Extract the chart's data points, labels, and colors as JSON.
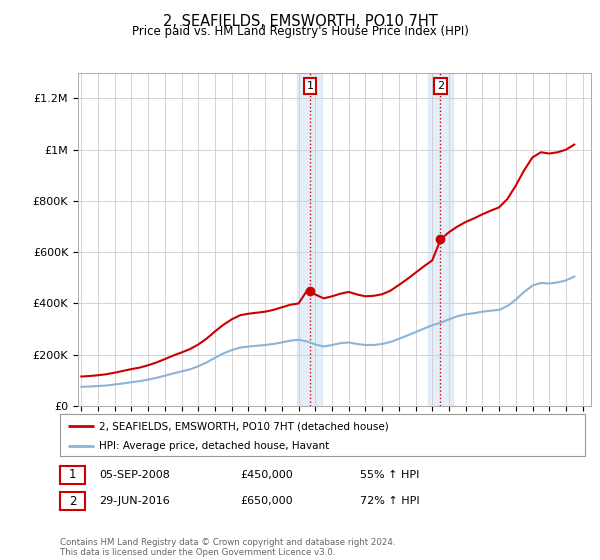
{
  "title": "2, SEAFIELDS, EMSWORTH, PO10 7HT",
  "subtitle": "Price paid vs. HM Land Registry's House Price Index (HPI)",
  "background_color": "#ffffff",
  "plot_bg_color": "#ffffff",
  "grid_color": "#cccccc",
  "ylim": [
    0,
    1300000
  ],
  "yticks": [
    0,
    200000,
    400000,
    600000,
    800000,
    1000000,
    1200000
  ],
  "ytick_labels": [
    "£0",
    "£200K",
    "£400K",
    "£600K",
    "£800K",
    "£1M",
    "£1.2M"
  ],
  "xlim_start": 1994.8,
  "xlim_end": 2025.5,
  "hpi_line_color": "#8ab4d8",
  "price_line_color": "#cc0000",
  "shade_color": "#cce0f5",
  "shade_alpha": 0.55,
  "vline_color": "#cc0000",
  "vline_style": ":",
  "point1_x": 2008.68,
  "point1_y": 450000,
  "point1_label": "1",
  "point1_date": "05-SEP-2008",
  "point1_price": "£450,000",
  "point1_hpi": "55% ↑ HPI",
  "point2_x": 2016.49,
  "point2_y": 650000,
  "point2_label": "2",
  "point2_date": "29-JUN-2016",
  "point2_price": "£650,000",
  "point2_hpi": "72% ↑ HPI",
  "legend_line1": "2, SEAFIELDS, EMSWORTH, PO10 7HT (detached house)",
  "legend_line2": "HPI: Average price, detached house, Havant",
  "footer": "Contains HM Land Registry data © Crown copyright and database right 2024.\nThis data is licensed under the Open Government Licence v3.0.",
  "hpi_data_x": [
    1995,
    1995.5,
    1996,
    1996.5,
    1997,
    1997.5,
    1998,
    1998.5,
    1999,
    1999.5,
    2000,
    2000.5,
    2001,
    2001.5,
    2002,
    2002.5,
    2003,
    2003.5,
    2004,
    2004.5,
    2005,
    2005.5,
    2006,
    2006.5,
    2007,
    2007.5,
    2008,
    2008.5,
    2009,
    2009.5,
    2010,
    2010.5,
    2011,
    2011.5,
    2012,
    2012.5,
    2013,
    2013.5,
    2014,
    2014.5,
    2015,
    2015.5,
    2016,
    2016.5,
    2017,
    2017.5,
    2018,
    2018.5,
    2019,
    2019.5,
    2020,
    2020.5,
    2021,
    2021.5,
    2022,
    2022.5,
    2023,
    2023.5,
    2024,
    2024.5
  ],
  "hpi_data_y": [
    75000,
    76000,
    78000,
    80000,
    84000,
    88000,
    93000,
    97000,
    103000,
    110000,
    118000,
    127000,
    135000,
    143000,
    155000,
    170000,
    188000,
    205000,
    218000,
    228000,
    232000,
    235000,
    238000,
    242000,
    248000,
    255000,
    258000,
    252000,
    240000,
    232000,
    238000,
    245000,
    248000,
    242000,
    238000,
    238000,
    242000,
    250000,
    262000,
    275000,
    288000,
    302000,
    315000,
    325000,
    338000,
    350000,
    358000,
    362000,
    368000,
    372000,
    375000,
    390000,
    415000,
    445000,
    470000,
    480000,
    478000,
    482000,
    490000,
    505000
  ],
  "price_data_x": [
    1995,
    1995.5,
    1996,
    1996.5,
    1997,
    1997.5,
    1998,
    1998.5,
    1999,
    1999.5,
    2000,
    2000.5,
    2001,
    2001.5,
    2002,
    2002.5,
    2003,
    2003.5,
    2004,
    2004.5,
    2005,
    2005.5,
    2006,
    2006.5,
    2007,
    2007.5,
    2008,
    2008.5,
    2009,
    2009.5,
    2010,
    2010.5,
    2011,
    2011.5,
    2012,
    2012.5,
    2013,
    2013.5,
    2014,
    2014.5,
    2015,
    2015.5,
    2016,
    2016.5,
    2017,
    2017.5,
    2018,
    2018.5,
    2019,
    2019.5,
    2020,
    2020.5,
    2021,
    2021.5,
    2022,
    2022.5,
    2023,
    2023.5,
    2024,
    2024.5
  ],
  "price_data_y": [
    115000,
    117000,
    120000,
    124000,
    130000,
    137000,
    144000,
    150000,
    159000,
    170000,
    183000,
    197000,
    209000,
    222000,
    240000,
    263000,
    291000,
    317000,
    338000,
    354000,
    360000,
    364000,
    368000,
    375000,
    385000,
    395000,
    400000,
    450000,
    435000,
    420000,
    428000,
    438000,
    445000,
    435000,
    428000,
    430000,
    436000,
    450000,
    472000,
    495000,
    520000,
    545000,
    568000,
    650000,
    678000,
    700000,
    718000,
    732000,
    748000,
    762000,
    775000,
    808000,
    860000,
    920000,
    970000,
    990000,
    985000,
    990000,
    1000000,
    1020000
  ]
}
